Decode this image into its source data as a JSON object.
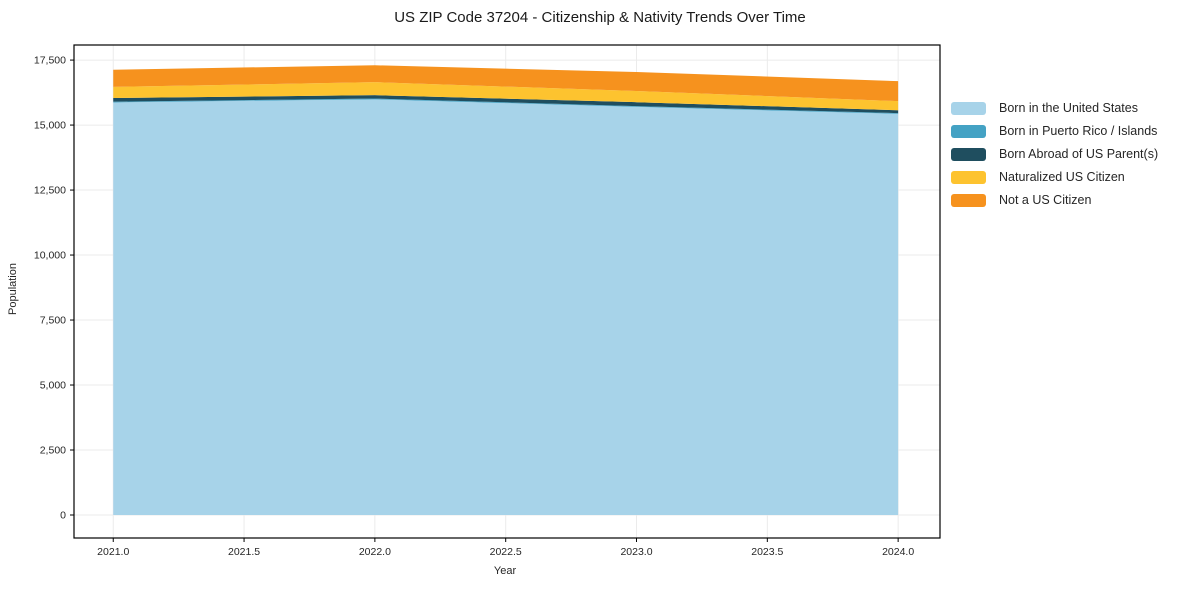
{
  "chart_data": {
    "type": "area",
    "stacked": true,
    "title": "US ZIP Code 37204 - Citizenship & Nativity Trends Over Time",
    "xlabel": "Year",
    "ylabel": "Population",
    "x": [
      2021,
      2022,
      2023,
      2024
    ],
    "series": [
      {
        "name": "Born in the United States",
        "color": "#a7d3e9",
        "values": [
          15870,
          15990,
          15700,
          15430
        ]
      },
      {
        "name": "Born in Puerto Rico / Islands",
        "color": "#44a2c4",
        "values": [
          30,
          30,
          30,
          30
        ]
      },
      {
        "name": "Born Abroad of US Parent(s)",
        "color": "#1f4e5f",
        "values": [
          140,
          130,
          150,
          110
        ]
      },
      {
        "name": "Naturalized US Citizen",
        "color": "#fdc32f",
        "values": [
          430,
          500,
          430,
          350
        ]
      },
      {
        "name": "Not a US Citizen",
        "color": "#f6921e",
        "values": [
          660,
          650,
          730,
          770
        ]
      }
    ],
    "totals": [
      17130,
      17300,
      17040,
      16690
    ],
    "xticks": {
      "values": [
        2021.0,
        2021.5,
        2022.0,
        2022.5,
        2023.0,
        2023.5,
        2024.0
      ],
      "labels": [
        "2021.0",
        "2021.5",
        "2022.0",
        "2022.5",
        "2023.0",
        "2023.5",
        "2024.0"
      ]
    },
    "yticks": {
      "values": [
        0,
        2500,
        5000,
        7500,
        10000,
        12500,
        15000,
        17500
      ],
      "labels": [
        "0",
        "2,500",
        "5,000",
        "7,500",
        "10,000",
        "12,500",
        "15,000",
        "17,500"
      ]
    },
    "xlim": [
      2020.85,
      2024.16
    ],
    "ylim": [
      -885,
      18080
    ],
    "grid": true,
    "legend_position": "upper right, outside plot",
    "colors": {
      "grid": "#ebebeb",
      "spine": "#000000",
      "tick_text": "#262626",
      "title_text": "#1a1a1a",
      "legend_text": "#262626",
      "background": "#ffffff"
    }
  }
}
